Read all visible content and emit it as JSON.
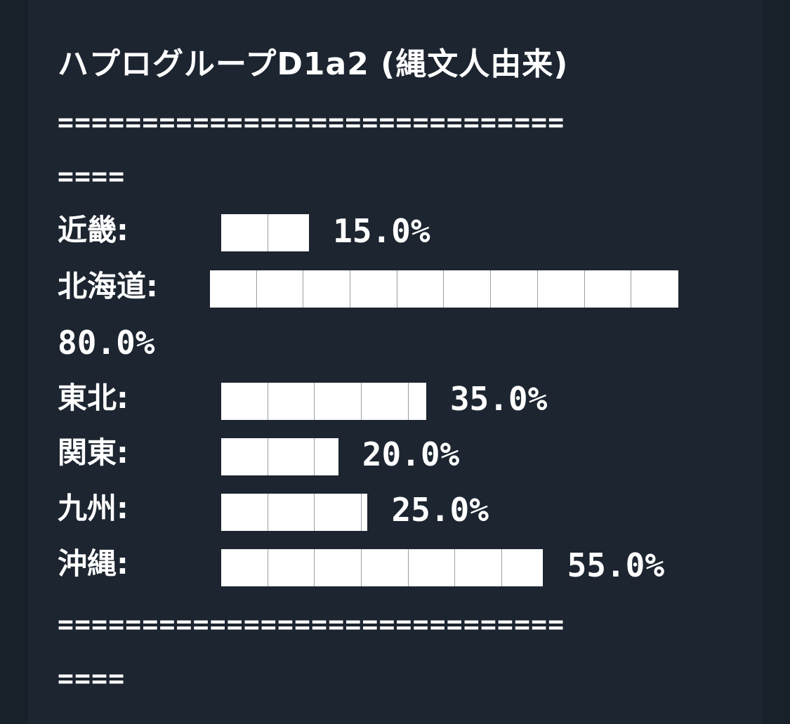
{
  "chart_data": {
    "type": "bar",
    "title": "ハプログループD1a2 (縄文人由来)",
    "separator_top": [
      "==============================",
      "===="
    ],
    "separator_bottom": [
      "==============================",
      "===="
    ],
    "categories": [
      "近畿",
      "北海道",
      "東北",
      "関東",
      "九州",
      "沖縄"
    ],
    "category_labels": [
      "近畿:",
      "北海道:",
      "東北:",
      "関東:",
      "九州:",
      "沖縄:"
    ],
    "values": [
      15.0,
      80.0,
      35.0,
      20.0,
      25.0,
      55.0
    ],
    "value_labels": [
      "15.0%",
      "80.0%",
      "35.0%",
      "20.0%",
      "25.0%",
      "55.0%"
    ],
    "unit": "%",
    "ylim": [
      0,
      100
    ]
  },
  "colors": {
    "background": "#1c2530",
    "bar": "#ffffff",
    "text": "#ffffff"
  }
}
